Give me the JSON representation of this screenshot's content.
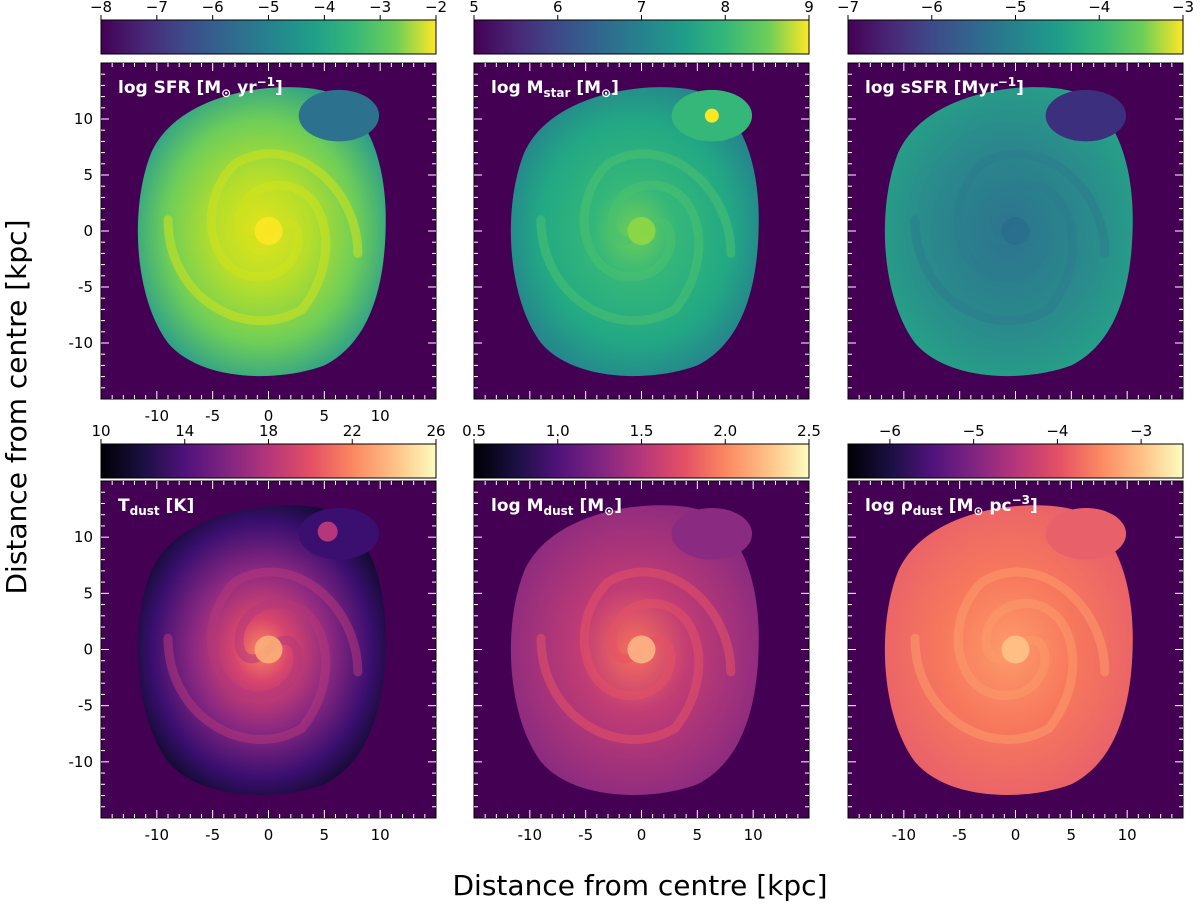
{
  "figure": {
    "xlabel": "Distance from centre [kpc]",
    "ylabel": "Distance from centre [kpc]",
    "background": "#440154"
  },
  "chart_data": [
    {
      "type": "heatmap",
      "quantity": "log SFR",
      "label": {
        "main": "log SFR [M",
        "sub": "⊙",
        "tail": " yr",
        "sup": "−1",
        "end": "]"
      },
      "colormap": "viridis",
      "bg_color": "#440154",
      "colorbar": {
        "range": [
          -8,
          -2
        ],
        "ticks": [
          "−8",
          "−7",
          "−6",
          "−5",
          "−4",
          "−3",
          "−2"
        ]
      },
      "xlim": [
        -15,
        15
      ],
      "ylim": [
        -15,
        15
      ],
      "xticks": [
        "-10",
        "-5",
        "0",
        "5",
        "10"
      ],
      "yticks": [
        "10",
        "5",
        "0",
        "-5",
        "-10"
      ]
    },
    {
      "type": "heatmap",
      "quantity": "log Mstar",
      "label": {
        "main": "log M",
        "sub": "star",
        "tail": " [M",
        "sub2": "⊙",
        "end": "]"
      },
      "colormap": "viridis",
      "bg_color": "#440154",
      "colorbar": {
        "range": [
          5,
          9
        ],
        "ticks": [
          "5",
          "6",
          "7",
          "8",
          "9"
        ]
      },
      "xlim": [
        -15,
        15
      ],
      "ylim": [
        -15,
        15
      ]
    },
    {
      "type": "heatmap",
      "quantity": "log sSFR",
      "label": {
        "main": "log sSFR [Myr",
        "sup": "−1",
        "end": "]"
      },
      "colormap": "viridis",
      "bg_color": "#440154",
      "colorbar": {
        "range": [
          -7,
          -3
        ],
        "ticks": [
          "−7",
          "−6",
          "−5",
          "−4",
          "−3"
        ]
      },
      "xlim": [
        -15,
        15
      ],
      "ylim": [
        -15,
        15
      ]
    },
    {
      "type": "heatmap",
      "quantity": "Tdust",
      "label": {
        "main": "T",
        "sub": "dust",
        "tail": " [K]"
      },
      "colormap": "magma",
      "bg_color": "#440154",
      "colorbar": {
        "range": [
          10,
          26
        ],
        "ticks": [
          "10",
          "14",
          "18",
          "22",
          "26"
        ]
      },
      "xlim": [
        -15,
        15
      ],
      "ylim": [
        -15,
        15
      ],
      "xticks": [
        "-10",
        "-5",
        "0",
        "5",
        "10"
      ],
      "yticks": [
        "10",
        "5",
        "0",
        "-5",
        "-10"
      ]
    },
    {
      "type": "heatmap",
      "quantity": "log Mdust",
      "label": {
        "main": "log M",
        "sub": "dust",
        "tail": " [M",
        "sub2": "⊙",
        "end": "]"
      },
      "colormap": "magma",
      "bg_color": "#440154",
      "colorbar": {
        "range": [
          0.5,
          2.5
        ],
        "ticks": [
          "0.5",
          "1.0",
          "1.5",
          "2.0",
          "2.5"
        ]
      },
      "xlim": [
        -15,
        15
      ],
      "ylim": [
        -15,
        15
      ],
      "xticks": [
        "-10",
        "-5",
        "0",
        "5",
        "10"
      ]
    },
    {
      "type": "heatmap",
      "quantity": "log rho_dust",
      "label": {
        "main": "log ρ",
        "sub": "dust",
        "tail": " [M",
        "sub2": "⊙",
        "tail2": " pc",
        "sup": "−3",
        "end": "]"
      },
      "colormap": "magma",
      "bg_color": "#440154",
      "colorbar": {
        "range": [
          -6.5,
          -2.5
        ],
        "ticks": [
          "−6",
          "−5",
          "−4",
          "−3"
        ]
      },
      "xlim": [
        -15,
        15
      ],
      "ylim": [
        -15,
        15
      ],
      "xticks": [
        "-10",
        "-5",
        "0",
        "5",
        "10"
      ]
    }
  ]
}
